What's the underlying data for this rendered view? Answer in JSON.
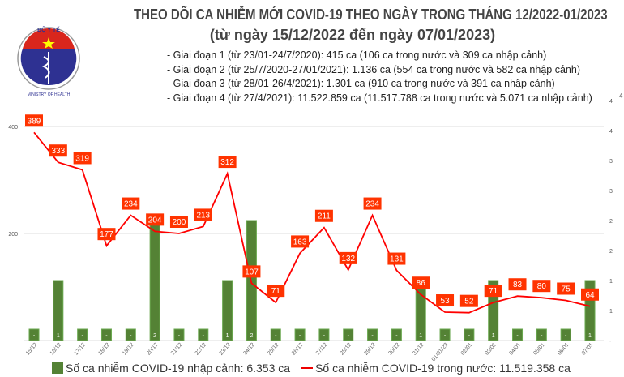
{
  "logo": {
    "text_top": "BỘ Y TẾ",
    "text_bottom": "MINISTRY OF HEALTH"
  },
  "page_number": "4",
  "chart_data": {
    "type": "bar+line",
    "title": "THEO DÕI CA NHIỄM MỚI COVID-19 THEO NGÀY TRONG THÁNG 12/2022-01/2023",
    "subtitle": "(từ ngày 15/12/2022 đến ngày 07/01/2023)",
    "notes": [
      "- Giai đoạn 1 (từ 23/01-24/7/2020): 415 ca (106 ca trong nước và 309 ca nhập cảnh)",
      "- Giai đoạn 2 (từ 25/7/2020-27/01/2021): 1.136 ca (554 ca trong nước và 582 ca nhập cảnh)",
      "- Giai đoạn 3 (từ 28/01-26/4/2021): 1.301 ca (910 ca trong nước và 391 ca nhập cảnh)",
      "- Giai đoạn 4 (từ 27/4/2021): 11.522.859 ca (11.517.788 ca trong nước và 5.071 ca nhập cảnh)"
    ],
    "categories": [
      "15/12",
      "16/12",
      "17/12",
      "18/12",
      "19/12",
      "20/12",
      "21/12",
      "22/12",
      "23/12",
      "24/12",
      "25/12",
      "26/12",
      "27/12",
      "28/12",
      "29/12",
      "30/12",
      "31/12",
      "01/01/23",
      "02/01",
      "03/01",
      "04/01",
      "05/01",
      "06/01",
      "07/01"
    ],
    "series": [
      {
        "name": "Số ca nhiễm COVID-19 nhập cảnh: 6.353 ca",
        "type": "bar",
        "axis": "right",
        "color": "#548235",
        "values": [
          0,
          1,
          0,
          0,
          0,
          2,
          0,
          0,
          1,
          2,
          0,
          0,
          0,
          0,
          0,
          0,
          1,
          0,
          0,
          1,
          0,
          0,
          0,
          1
        ]
      },
      {
        "name": "Số ca nhiễm COVID-19 trong nước: 11.519.358 ca",
        "type": "line",
        "axis": "left",
        "color": "#ff0000",
        "values": [
          389,
          333,
          319,
          177,
          234,
          204,
          200,
          213,
          312,
          107,
          71,
          163,
          211,
          132,
          234,
          131,
          86,
          53,
          52,
          71,
          83,
          80,
          75,
          64
        ]
      }
    ],
    "left_axis": {
      "ylim": [
        0,
        400
      ],
      "ticks": [
        "200",
        "400"
      ]
    },
    "right_axis": {
      "ylim": [
        0,
        4
      ],
      "ticks": [
        "-",
        "1",
        "1",
        "2",
        "2",
        "3",
        "3",
        "4",
        "4"
      ]
    },
    "zero_label": "-",
    "legend_position": "bottom"
  }
}
